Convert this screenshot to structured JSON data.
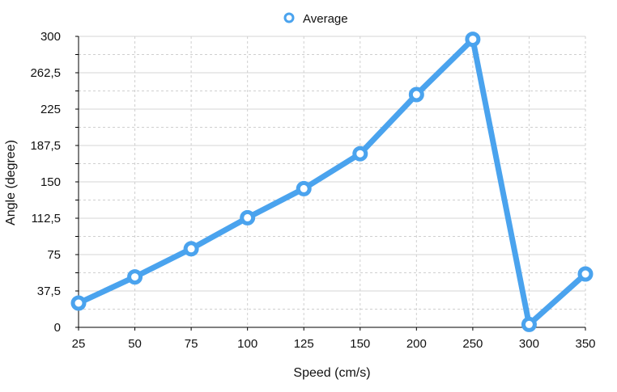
{
  "chart_data": {
    "type": "line",
    "title": "",
    "xlabel": "Speed (cm/s)",
    "ylabel": "Angle (degree)",
    "legend": {
      "position": "top-center"
    },
    "grid": true,
    "categories": [
      "25",
      "50",
      "75",
      "100",
      "125",
      "150",
      "200",
      "250",
      "300",
      "350"
    ],
    "y_ticks": [
      "0",
      "37,5",
      "75",
      "112,5",
      "150",
      "187,5",
      "225",
      "262,5",
      "300"
    ],
    "ylim": [
      0,
      300
    ],
    "series": [
      {
        "name": "Average",
        "color": "#4aa3ee",
        "values": [
          25,
          52,
          81,
          113,
          143,
          179,
          240,
          297,
          3,
          55
        ]
      }
    ]
  }
}
